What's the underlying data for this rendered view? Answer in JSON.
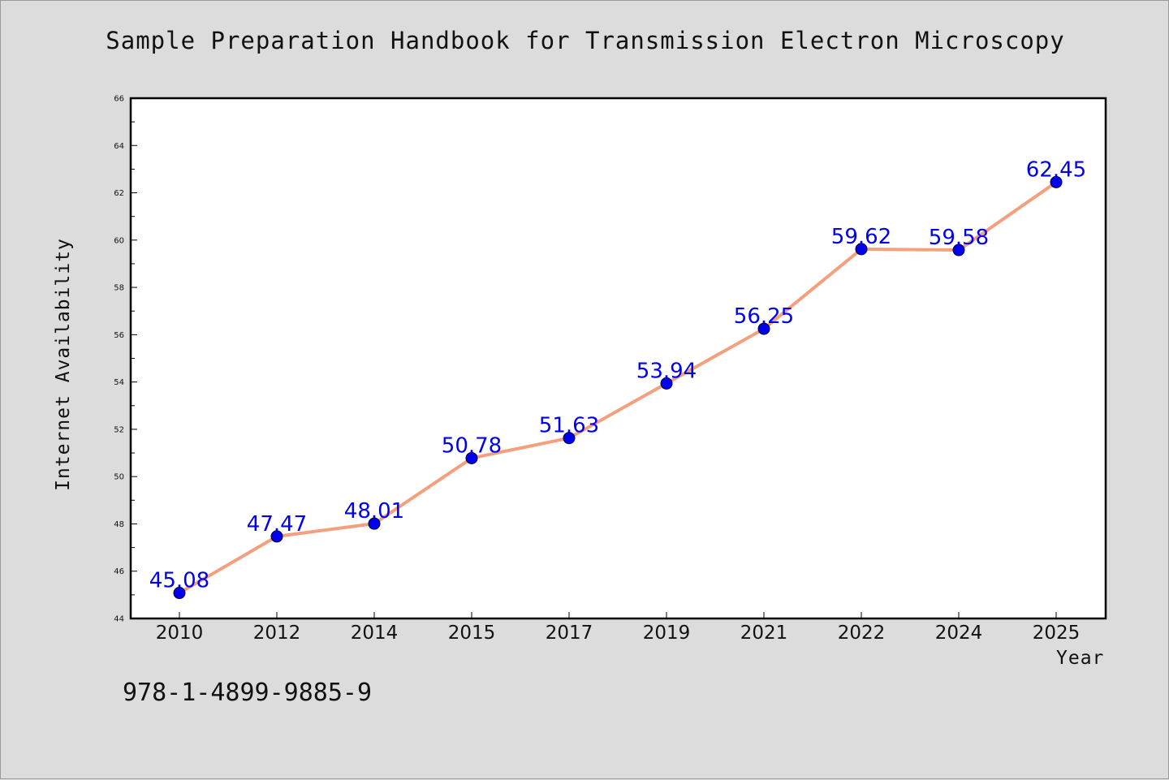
{
  "chart_data": {
    "type": "line",
    "title": "Sample Preparation Handbook for Transmission Electron Microscopy",
    "xlabel": "Year",
    "ylabel": "Internet Availability",
    "categories": [
      "2010",
      "2012",
      "2014",
      "2015",
      "2017",
      "2019",
      "2021",
      "2022",
      "2024",
      "2025"
    ],
    "series": [
      {
        "values": [
          45.08,
          47.47,
          48.01,
          50.78,
          51.63,
          53.94,
          56.25,
          59.62,
          59.58,
          62.45
        ],
        "labels": [
          "45.08",
          "47.47",
          "48.01",
          "50.78",
          "51.63",
          "53.94",
          "56.25",
          "59.62",
          "59.58",
          "62.45"
        ]
      }
    ],
    "ylim": [
      44,
      66
    ],
    "yticks": [
      "44",
      "46",
      "48",
      "50",
      "52",
      "54",
      "56",
      "58",
      "60",
      "62",
      "64",
      "66"
    ],
    "grid": false,
    "line_color": "#f4a07e",
    "marker_color": "#0000ee",
    "label_color": "#0000ee"
  },
  "footer": {
    "isbn": "978-1-4899-9885-9"
  }
}
